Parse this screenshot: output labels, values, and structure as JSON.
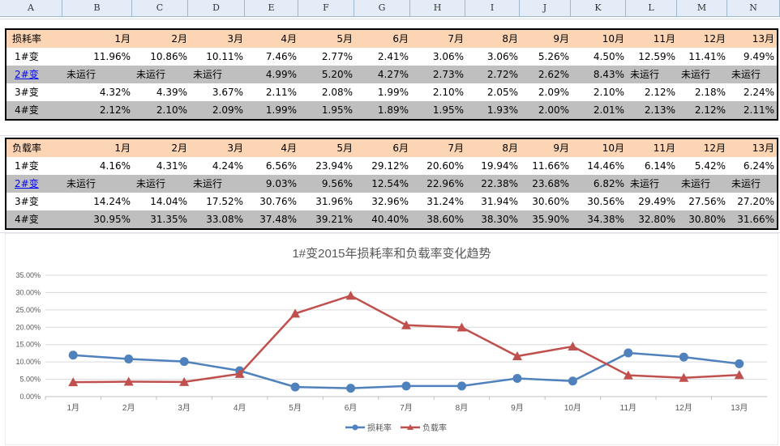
{
  "columns": [
    "A",
    "B",
    "C",
    "D",
    "E",
    "F",
    "G",
    "H",
    "I",
    "J",
    "K",
    "L",
    "M",
    "N"
  ],
  "tables": [
    {
      "header": "损耗率",
      "months": [
        "1月",
        "2月",
        "3月",
        "4月",
        "5月",
        "6月",
        "7月",
        "8月",
        "9月",
        "10月",
        "11月",
        "12月",
        "13月"
      ],
      "rows": [
        {
          "label": "1#变",
          "link": false,
          "values": [
            "11.96%",
            "10.86%",
            "10.11%",
            "7.46%",
            "2.77%",
            "2.41%",
            "3.06%",
            "3.06%",
            "5.26%",
            "4.50%",
            "12.59%",
            "11.41%",
            "9.49%"
          ]
        },
        {
          "label": "2#变",
          "link": true,
          "values": [
            "未运行",
            "未运行",
            "未运行",
            "4.99%",
            "5.20%",
            "4.27%",
            "2.73%",
            "2.72%",
            "2.62%",
            "8.43%",
            "未运行",
            "未运行",
            "未运行"
          ]
        },
        {
          "label": "3#变",
          "link": false,
          "values": [
            "4.32%",
            "4.39%",
            "3.67%",
            "2.11%",
            "2.08%",
            "1.99%",
            "2.10%",
            "2.05%",
            "2.09%",
            "2.10%",
            "2.12%",
            "2.18%",
            "2.24%"
          ]
        },
        {
          "label": "4#变",
          "link": false,
          "values": [
            "2.12%",
            "2.10%",
            "2.09%",
            "1.99%",
            "1.95%",
            "1.89%",
            "1.95%",
            "1.93%",
            "2.00%",
            "2.01%",
            "2.13%",
            "2.12%",
            "2.11%"
          ]
        }
      ]
    },
    {
      "header": "负载率",
      "months": [
        "1月",
        "2月",
        "3月",
        "4月",
        "5月",
        "6月",
        "7月",
        "8月",
        "9月",
        "10月",
        "11月",
        "12月",
        "13月"
      ],
      "rows": [
        {
          "label": "1#变",
          "link": false,
          "values": [
            "4.16%",
            "4.31%",
            "4.24%",
            "6.56%",
            "23.94%",
            "29.12%",
            "20.60%",
            "19.94%",
            "11.66%",
            "14.46%",
            "6.14%",
            "5.42%",
            "6.24%"
          ]
        },
        {
          "label": "2#变",
          "link": true,
          "values": [
            "未运行",
            "未运行",
            "未运行",
            "9.03%",
            "9.56%",
            "12.54%",
            "22.96%",
            "22.38%",
            "23.68%",
            "6.82%",
            "未运行",
            "未运行",
            "未运行"
          ]
        },
        {
          "label": "3#变",
          "link": false,
          "values": [
            "14.24%",
            "14.04%",
            "17.52%",
            "30.76%",
            "31.96%",
            "32.96%",
            "31.24%",
            "31.94%",
            "30.60%",
            "30.56%",
            "29.49%",
            "27.56%",
            "27.20%"
          ]
        },
        {
          "label": "4#变",
          "link": false,
          "values": [
            "30.95%",
            "31.35%",
            "33.08%",
            "37.48%",
            "39.21%",
            "40.40%",
            "38.60%",
            "38.30%",
            "35.90%",
            "34.38%",
            "32.80%",
            "30.80%",
            "31.66%"
          ]
        }
      ]
    }
  ],
  "chart_data": {
    "type": "line",
    "title": "1#变2015年损耗率和负载率变化趋势",
    "categories": [
      "1月",
      "2月",
      "3月",
      "4月",
      "5月",
      "6月",
      "7月",
      "8月",
      "9月",
      "10月",
      "11月",
      "12月",
      "13月"
    ],
    "yticks": [
      "0.00%",
      "5.00%",
      "10.00%",
      "15.00%",
      "20.00%",
      "25.00%",
      "30.00%",
      "35.00%"
    ],
    "ylim": [
      0,
      35
    ],
    "grid": true,
    "legend_position": "bottom",
    "series": [
      {
        "name": "损耗率",
        "color": "#4f81bd",
        "marker": "circle",
        "values": [
          11.96,
          10.86,
          10.11,
          7.46,
          2.77,
          2.41,
          3.06,
          3.06,
          5.26,
          4.5,
          12.59,
          11.41,
          9.49
        ]
      },
      {
        "name": "负载率",
        "color": "#c0504d",
        "marker": "triangle",
        "values": [
          4.16,
          4.31,
          4.24,
          6.56,
          23.94,
          29.12,
          20.6,
          19.94,
          11.66,
          14.46,
          6.14,
          5.42,
          6.24
        ]
      }
    ]
  }
}
